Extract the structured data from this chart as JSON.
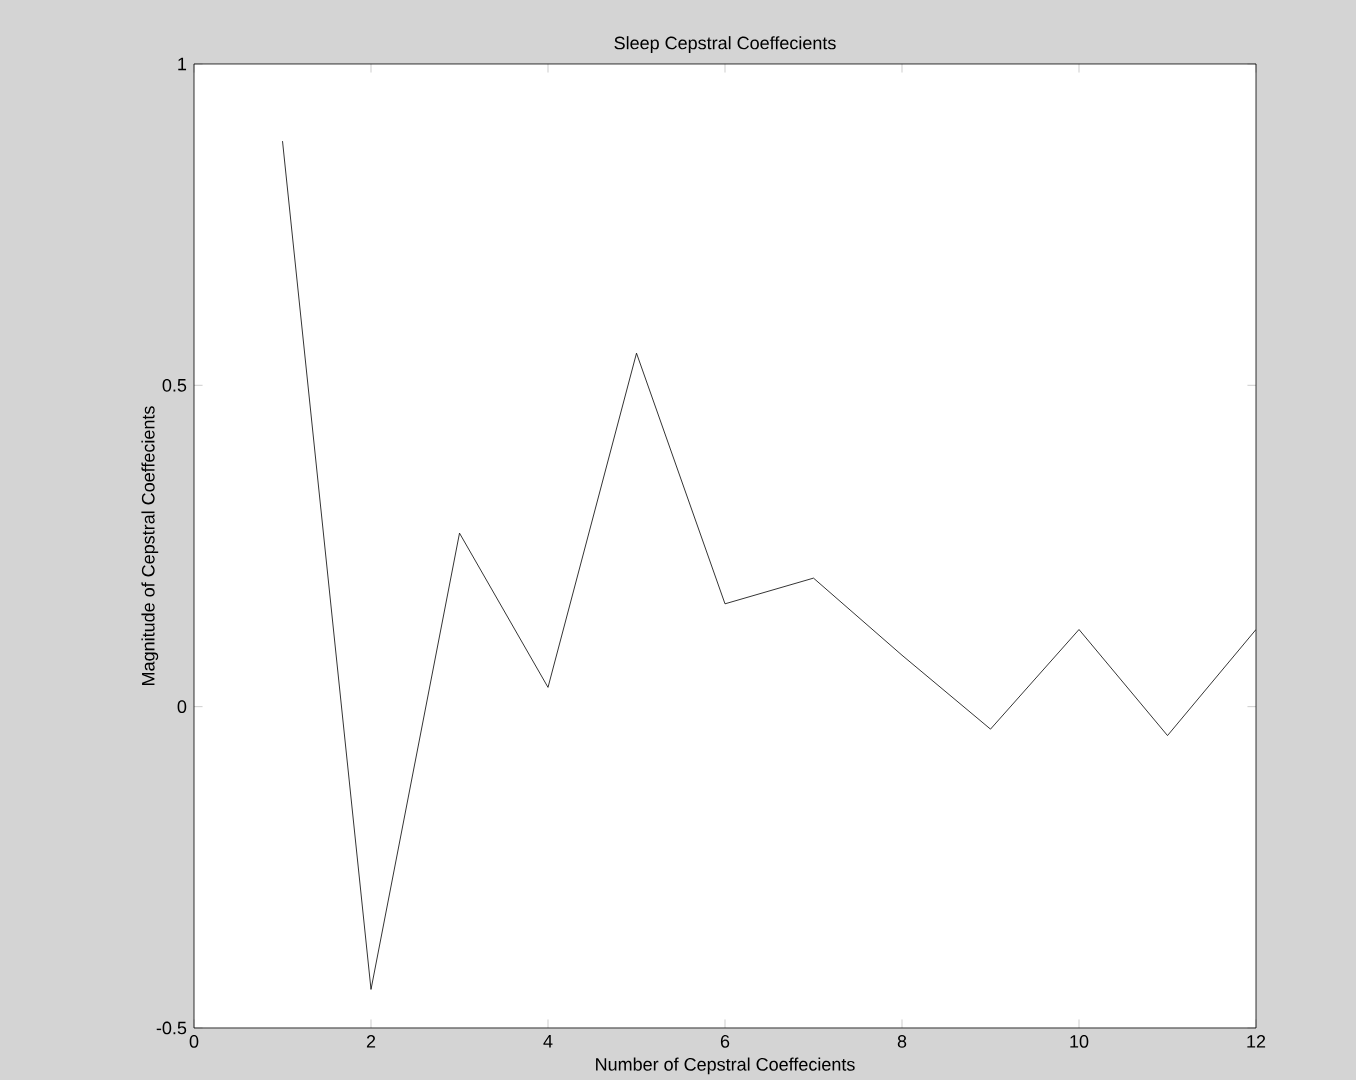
{
  "chart_data": {
    "type": "line",
    "title": "Sleep Cepstral Coeffecients",
    "xlabel": "Number of Cepstral Coeffecients",
    "ylabel": "Magnitude of Cepstral Coeffecients",
    "x": [
      1,
      2,
      3,
      4,
      5,
      6,
      7,
      8,
      9,
      10,
      11,
      12
    ],
    "values": [
      0.88,
      -0.44,
      0.27,
      0.03,
      0.55,
      0.16,
      0.2,
      0.08,
      -0.035,
      0.12,
      -0.045,
      0.12
    ],
    "color": "#000000",
    "xlim": [
      0,
      12
    ],
    "ylim": [
      -0.5,
      1
    ],
    "xticks": [
      0,
      2,
      4,
      6,
      8,
      10,
      12
    ],
    "yticks": [
      -0.5,
      0,
      0.5,
      1
    ],
    "grid": false,
    "marker": "none",
    "line_style": "solid"
  }
}
